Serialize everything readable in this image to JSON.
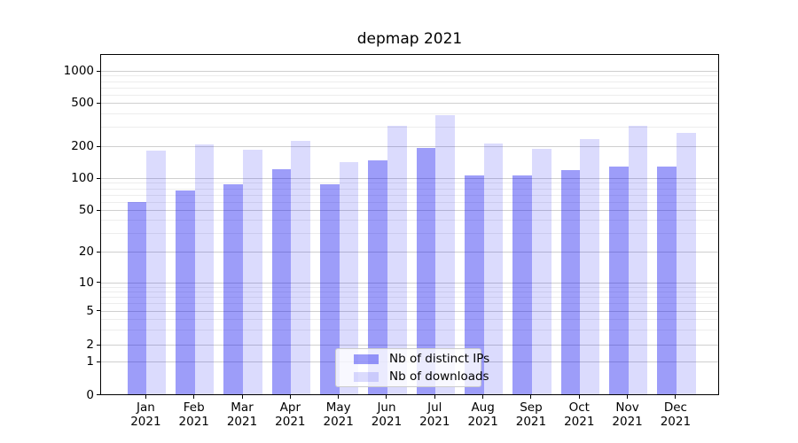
{
  "title": "depmap 2021",
  "chart_data": {
    "type": "bar",
    "title": "depmap 2021",
    "categories": [
      "Jan 2021",
      "Feb 2021",
      "Mar 2021",
      "Apr 2021",
      "May 2021",
      "Jun 2021",
      "Jul 2021",
      "Aug 2021",
      "Sep 2021",
      "Oct 2021",
      "Nov 2021",
      "Dec 2021"
    ],
    "series": [
      {
        "name": "Nb of distinct IPs",
        "values": [
          58,
          75,
          85,
          120,
          85,
          143,
          190,
          104,
          103,
          116,
          125,
          126
        ]
      },
      {
        "name": "Nb of downloads",
        "values": [
          178,
          204,
          182,
          220,
          140,
          300,
          375,
          206,
          185,
          226,
          300,
          261
        ]
      }
    ],
    "xlabel": "",
    "ylabel": "",
    "yscale": "log-like with 0 baseline (symlog)",
    "yticks": [
      0,
      1,
      2,
      5,
      10,
      20,
      50,
      100,
      200,
      500,
      1000
    ],
    "ylim": [
      0,
      1500
    ],
    "grid": "horizontal major and minor gridlines",
    "legend_position": "lower center inside plot"
  },
  "x_axis": {
    "months": [
      "Jan",
      "Feb",
      "Mar",
      "Apr",
      "May",
      "Jun",
      "Jul",
      "Aug",
      "Sep",
      "Oct",
      "Nov",
      "Dec"
    ],
    "year": "2021"
  },
  "y_axis": {
    "tick_labels": [
      "0",
      "1",
      "2",
      "5",
      "10",
      "20",
      "50",
      "100",
      "200",
      "500",
      "1000"
    ]
  },
  "legend": {
    "items": [
      {
        "label": "Nb of distinct IPs",
        "swatch": "#9d9dfb"
      },
      {
        "label": "Nb of downloads",
        "swatch": "#dcdcfd"
      }
    ]
  },
  "colors": {
    "bar_base": "#0a0af0",
    "bar_ips_alpha": "0.40",
    "bar_downloads_alpha": "0.145",
    "grid_major": "#cfcfcf",
    "grid_minor": "#ededed",
    "spine": "#000000",
    "background": "#ffffff"
  }
}
